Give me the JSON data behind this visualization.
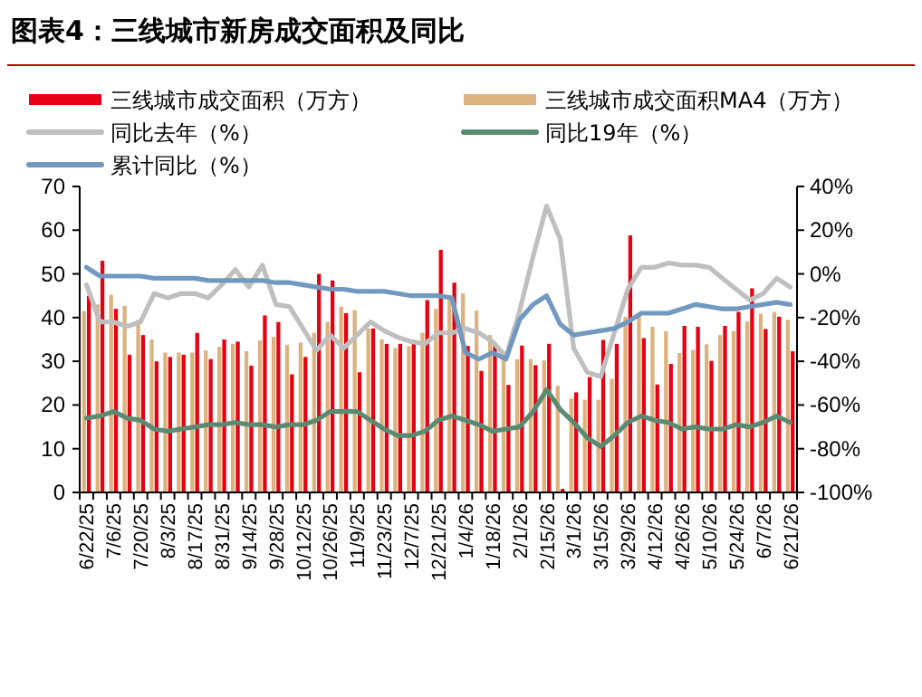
{
  "chart_data": {
    "type": "bar",
    "title": "图表4：三线城市新房成交面积及同比",
    "categories": [
      "6/22/25",
      null,
      "7/6/25",
      null,
      "7/20/25",
      null,
      "8/3/25",
      null,
      "8/17/25",
      null,
      "8/31/25",
      null,
      "9/14/25",
      null,
      "9/28/25",
      null,
      "10/12/25",
      null,
      "10/26/25",
      null,
      "11/9/25",
      null,
      "11/23/25",
      null,
      "12/7/25",
      null,
      "12/21/25",
      null,
      "1/4/26",
      null,
      "1/18/26",
      null,
      "2/1/26",
      null,
      "2/15/26",
      null,
      "3/1/26",
      null,
      "3/15/26",
      null,
      "3/29/26",
      null,
      "4/12/26",
      null,
      "4/26/26",
      null,
      "5/10/26",
      null,
      "5/24/26",
      null,
      "6/7/26",
      null,
      "6/21/26"
    ],
    "series": [
      {
        "name": "三线城市成交面积（万方）",
        "color": "#e60012",
        "values": [
          45,
          53,
          42,
          31.5,
          36,
          30,
          31,
          31.5,
          36.5,
          30.5,
          35,
          34.5,
          29,
          40.5,
          39,
          27,
          31,
          50,
          48.5,
          41,
          27.5,
          37.5,
          34,
          34,
          34,
          44,
          55.5,
          48,
          33.5,
          27.8,
          34.2,
          24.6,
          33.6,
          29.1,
          34,
          0.8,
          22.9,
          26.4,
          34.9,
          34,
          58.8,
          35.3,
          24.7,
          29.4,
          38.1,
          37.9,
          30.1,
          38.1,
          41.3,
          46.7,
          37.4,
          40.2,
          32.3
        ]
      },
      {
        "name": "三线城市成交面积MA4（万方）",
        "color": "#dcb27f",
        "values": [
          41.5,
          43,
          45.2,
          42.7,
          39.5,
          35,
          32,
          32,
          32,
          32.5,
          33.3,
          34,
          32.3,
          34.8,
          35.6,
          33.8,
          34.3,
          36.5,
          39,
          42.5,
          41.7,
          37.5,
          35,
          33,
          33.5,
          36.5,
          42,
          45,
          45.5,
          41.6,
          36,
          30.5,
          30.5,
          30.5,
          30.2,
          24.4,
          21.5,
          21.2,
          21.2,
          26,
          40.2,
          40.5,
          37.9,
          36.9,
          31.9,
          32.6,
          33.9,
          36,
          36.9,
          39.1,
          40.9,
          41.3,
          39.5
        ]
      },
      {
        "name": "同比去年（%）",
        "type": "line",
        "axis": "y2",
        "color": "#bfbfbf",
        "values": [
          -5,
          -22,
          -22,
          -24,
          -22,
          -9,
          -11,
          -9,
          -9,
          -11,
          -5,
          2,
          -6,
          4,
          -14,
          -15,
          -25,
          -35,
          -28,
          -34,
          -28,
          -22,
          -26,
          -29,
          -31,
          -32,
          -27,
          -27,
          -25,
          -27,
          -31,
          -38,
          -17,
          8,
          31,
          16,
          -34,
          -45,
          -47,
          -27,
          -7,
          3,
          3,
          5,
          4,
          4,
          3,
          -2,
          -7,
          -12,
          -9,
          -2,
          -6
        ]
      },
      {
        "name": "同比19年（%）",
        "type": "line",
        "axis": "y2",
        "color": "#5b8a72",
        "values": [
          -66,
          -65,
          -63,
          -66,
          -67,
          -71,
          -72,
          -71,
          -70,
          -69,
          -69,
          -68,
          -69,
          -69,
          -70,
          -69,
          -69,
          -67,
          -63,
          -63,
          -63,
          -67,
          -71,
          -74,
          -74,
          -72,
          -67,
          -65,
          -67,
          -69,
          -72,
          -71,
          -70,
          -63,
          -53,
          -62,
          -68,
          -75,
          -79,
          -74,
          -68,
          -65,
          -67,
          -68,
          -71,
          -70,
          -71,
          -71,
          -69,
          -70,
          -68,
          -65,
          -68
        ]
      },
      {
        "name": "累计同比（%）",
        "type": "line",
        "axis": "y2",
        "color": "#7199bf",
        "values": [
          3,
          -1,
          -1,
          -1,
          -1,
          -2,
          -2,
          -2,
          -2,
          -3,
          -3,
          -3,
          -3,
          -3,
          -4,
          -4,
          -5,
          -6,
          -7,
          -7,
          -8,
          -8,
          -8,
          -9,
          -10,
          -10,
          -10,
          -11,
          -36,
          -39,
          -36,
          -39,
          -21,
          -14,
          -10,
          -23,
          -28,
          -27,
          -26,
          -25,
          -22,
          -18,
          -18,
          -18,
          -16,
          -14,
          -15,
          -16,
          -16,
          -15,
          -14,
          -13,
          -14
        ]
      }
    ],
    "ylim": [
      0,
      70
    ],
    "yticks": [
      0,
      10,
      20,
      30,
      40,
      50,
      60,
      70
    ],
    "y2lim": [
      -100,
      40
    ],
    "y2ticks": [
      {
        "value": -100,
        "label": "-100%"
      },
      {
        "value": -80,
        "label": "-80%"
      },
      {
        "value": -60,
        "label": "-60%"
      },
      {
        "value": -40,
        "label": "-40%"
      },
      {
        "value": -20,
        "label": "-20%"
      },
      {
        "value": 0,
        "label": "0%"
      },
      {
        "value": 20,
        "label": "20%"
      },
      {
        "value": 40,
        "label": "40%"
      }
    ],
    "legend": "top",
    "grid": false
  }
}
